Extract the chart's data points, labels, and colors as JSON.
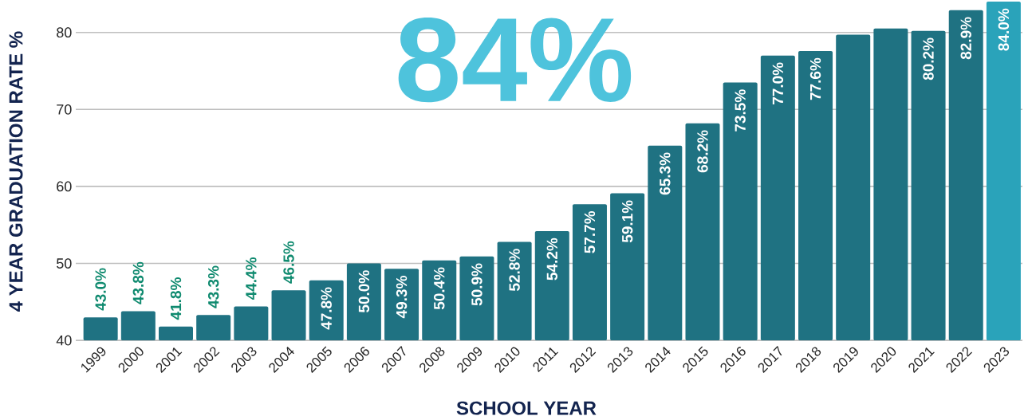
{
  "chart_data": {
    "type": "bar",
    "ylabel": "4 YEAR GRADUATION RATE %",
    "xlabel": "SCHOOL YEAR",
    "annotations": [
      "84%"
    ],
    "categories": [
      "1999",
      "2000",
      "2001",
      "2002",
      "2003",
      "2004",
      "2005",
      "2006",
      "2007",
      "2008",
      "2009",
      "2010",
      "2011",
      "2012",
      "2013",
      "2014",
      "2015",
      "2016",
      "2017",
      "2018",
      "2019",
      "2020",
      "2021",
      "2022",
      "2023"
    ],
    "values": [
      43.0,
      43.8,
      41.8,
      43.3,
      44.4,
      46.5,
      47.8,
      50.0,
      49.3,
      50.4,
      50.9,
      52.8,
      54.2,
      57.7,
      59.1,
      65.3,
      68.2,
      73.5,
      77.0,
      77.6,
      79.7,
      80.5,
      80.2,
      82.9,
      84.0
    ],
    "value_labels": [
      "43.0%",
      "43.8%",
      "41.8%",
      "43.3%",
      "44.4%",
      "46.5%",
      "47.8%",
      "50.0%",
      "49.3%",
      "50.4%",
      "50.9%",
      "52.8%",
      "54.2%",
      "57.7%",
      "59.1%",
      "65.3%",
      "68.2%",
      "73.5%",
      "77.0%",
      "77.6%",
      null,
      null,
      "80.2%",
      "82.9%",
      "84.0%"
    ],
    "colors": [
      "#1f7282",
      "#1f7282",
      "#1f7282",
      "#1f7282",
      "#1f7282",
      "#1f7282",
      "#1f7282",
      "#1f7282",
      "#1f7282",
      "#1f7282",
      "#1f7282",
      "#1f7282",
      "#1f7282",
      "#1f7282",
      "#1f7282",
      "#1f7282",
      "#1f7282",
      "#1f7282",
      "#1f7282",
      "#1f7282",
      "#1f7282",
      "#1f7282",
      "#1f7282",
      "#1f7282",
      "#2aa3ba"
    ],
    "ylim": [
      40,
      84.2
    ],
    "yticks": [
      40,
      50,
      60,
      70,
      80
    ],
    "grid": "y"
  }
}
